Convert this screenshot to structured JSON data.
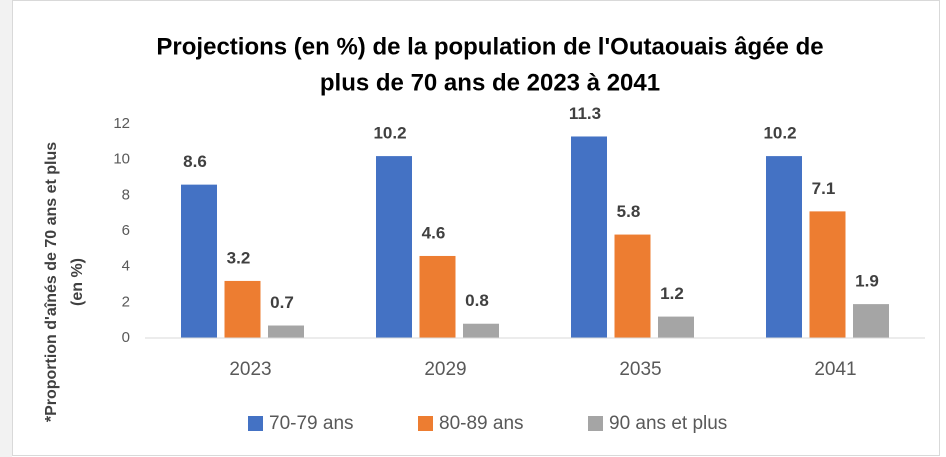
{
  "chart_data": {
    "type": "bar",
    "title": [
      "Projections (en %) de la population de l'Outaouais âgée de",
      "plus de 70 ans de 2023 à 2041"
    ],
    "ylabel": [
      "*Proportion  d'aînés de 70 ans et plus",
      "(en %)"
    ],
    "categories": [
      "2023",
      "2029",
      "2035",
      "2041"
    ],
    "series": [
      {
        "name": "70-79 ans",
        "color": "#4472c4",
        "values": [
          8.6,
          10.2,
          11.3,
          10.2
        ]
      },
      {
        "name": "80-89 ans",
        "color": "#ed7d31",
        "values": [
          3.2,
          4.6,
          5.8,
          7.1
        ]
      },
      {
        "name": "90 ans et plus",
        "color": "#a5a5a5",
        "values": [
          0.7,
          0.8,
          1.2,
          1.9
        ]
      }
    ],
    "ylim": [
      0,
      12
    ],
    "yticks": [
      0,
      2,
      4,
      6,
      8,
      10,
      12
    ],
    "grid": false,
    "legend": "bottom"
  }
}
